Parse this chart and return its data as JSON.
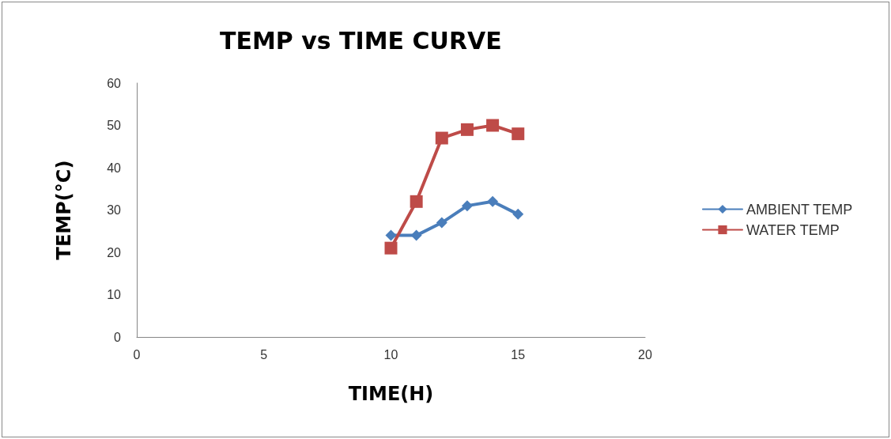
{
  "chart_data": {
    "type": "line",
    "title": "TEMP vs TIME CURVE",
    "xlabel": "TIME(H)",
    "ylabel": "TEMP(°C)",
    "xlim": [
      0,
      20
    ],
    "xticks": [
      0,
      5,
      10,
      15,
      20
    ],
    "ylim": [
      0,
      60
    ],
    "yticks": [
      0,
      10,
      20,
      30,
      40,
      50,
      60
    ],
    "grid": false,
    "legend": "right",
    "line_style": "solid",
    "series": [
      {
        "name": "AMBIENT TEMP",
        "color": "#4a7ebb",
        "marker": "diamond",
        "x": [
          10,
          11,
          12,
          13,
          14,
          15
        ],
        "values": [
          24,
          24,
          27,
          31,
          32,
          29
        ]
      },
      {
        "name": "WATER TEMP",
        "color": "#be4b48",
        "marker": "square",
        "x": [
          10,
          11,
          12,
          13,
          14,
          15
        ],
        "values": [
          21,
          32,
          47,
          49,
          50,
          48
        ]
      }
    ]
  }
}
